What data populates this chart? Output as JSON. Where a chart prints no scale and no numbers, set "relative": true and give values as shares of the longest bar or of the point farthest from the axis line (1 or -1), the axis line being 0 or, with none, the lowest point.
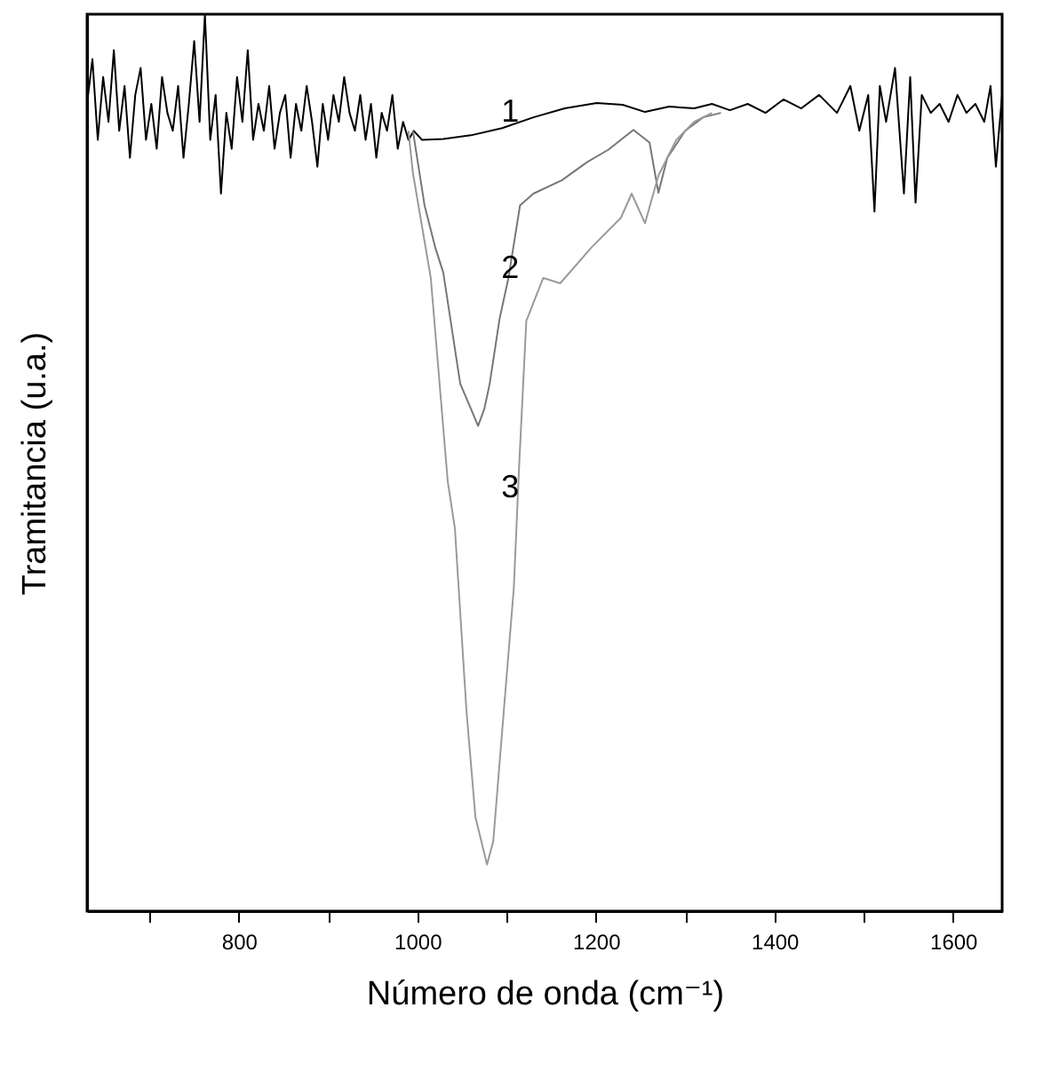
{
  "chart_data": {
    "type": "line",
    "relative": true,
    "xlabel": "Número de onda (cm⁻¹)",
    "ylabel": "Tramitancia (u.a.)",
    "xlim": [
      630,
      1655
    ],
    "xticks": [
      {
        "value": 700,
        "label": null
      },
      800,
      {
        "value": 900,
        "label": null
      },
      1000,
      {
        "value": 1100,
        "label": null
      },
      1200,
      {
        "value": 1300,
        "label": null
      },
      1400,
      {
        "value": 1500,
        "label": null
      },
      1600
    ],
    "grid": false,
    "marker": "none",
    "series": [
      {
        "name": "1",
        "color": "#000000",
        "x": [
          630,
          636,
          642,
          648,
          654,
          660,
          666,
          672,
          678,
          684,
          690,
          696,
          702,
          708,
          714,
          720,
          726,
          732,
          738,
          744,
          750,
          756,
          762,
          768,
          774,
          780,
          786,
          792,
          798,
          804,
          810,
          816,
          822,
          828,
          834,
          840,
          846,
          852,
          858,
          864,
          870,
          876,
          882,
          888,
          894,
          900,
          906,
          912,
          918,
          924,
          930,
          936,
          942,
          948,
          954,
          960,
          966,
          972,
          978,
          984,
          990,
          996,
          1005,
          1029,
          1060,
          1095,
          1130,
          1165,
          1201,
          1230,
          1255,
          1282,
          1310,
          1330,
          1350,
          1370,
          1390,
          1410,
          1430,
          1450,
          1470,
          1485,
          1495,
          1505,
          1512,
          1518,
          1525,
          1535,
          1545,
          1552,
          1558,
          1565,
          1575,
          1585,
          1595,
          1605,
          1615,
          1625,
          1635,
          1642,
          1648,
          1655
        ],
        "values": [
          0.9,
          0.95,
          0.86,
          0.93,
          0.88,
          0.96,
          0.87,
          0.92,
          0.84,
          0.91,
          0.94,
          0.86,
          0.9,
          0.85,
          0.93,
          0.89,
          0.87,
          0.92,
          0.84,
          0.9,
          0.97,
          0.88,
          1.0,
          0.86,
          0.91,
          0.8,
          0.89,
          0.85,
          0.93,
          0.88,
          0.96,
          0.86,
          0.9,
          0.87,
          0.92,
          0.85,
          0.89,
          0.91,
          0.84,
          0.9,
          0.87,
          0.92,
          0.88,
          0.83,
          0.9,
          0.86,
          0.91,
          0.88,
          0.93,
          0.89,
          0.87,
          0.91,
          0.86,
          0.9,
          0.84,
          0.89,
          0.87,
          0.91,
          0.85,
          0.88,
          0.86,
          0.87,
          0.86,
          0.861,
          0.865,
          0.873,
          0.885,
          0.895,
          0.901,
          0.899,
          0.891,
          0.897,
          0.895,
          0.9,
          0.893,
          0.9,
          0.89,
          0.905,
          0.895,
          0.91,
          0.89,
          0.92,
          0.87,
          0.91,
          0.78,
          0.92,
          0.88,
          0.94,
          0.8,
          0.93,
          0.79,
          0.91,
          0.89,
          0.9,
          0.88,
          0.91,
          0.89,
          0.9,
          0.88,
          0.92,
          0.83,
          0.91
        ]
      },
      {
        "name": "2",
        "color": "#777777",
        "x": [
          995,
          1008,
          1020,
          1029,
          1048,
          1060,
          1068,
          1075,
          1081,
          1092,
          1102,
          1115,
          1130,
          1162,
          1190,
          1214,
          1242,
          1260,
          1270,
          1280,
          1300,
          1320,
          1340
        ],
        "values": [
          0.87,
          0.787,
          0.74,
          0.712,
          0.588,
          0.56,
          0.541,
          0.56,
          0.588,
          0.66,
          0.706,
          0.787,
          0.8,
          0.815,
          0.835,
          0.849,
          0.871,
          0.857,
          0.801,
          0.84,
          0.87,
          0.885,
          0.89
        ]
      },
      {
        "name": "3",
        "color": "#9a9a9a",
        "x": [
          990,
          995,
          1015,
          1034,
          1042,
          1055,
          1065,
          1078,
          1085,
          1094,
          1108,
          1114,
          1122,
          1141,
          1160,
          1195,
          1228,
          1240,
          1255,
          1270,
          1290,
          1310,
          1330
        ],
        "values": [
          0.87,
          0.823,
          0.706,
          0.479,
          0.427,
          0.223,
          0.105,
          0.052,
          0.078,
          0.189,
          0.36,
          0.497,
          0.658,
          0.706,
          0.7,
          0.74,
          0.773,
          0.8,
          0.767,
          0.82,
          0.86,
          0.88,
          0.89
        ]
      }
    ]
  }
}
